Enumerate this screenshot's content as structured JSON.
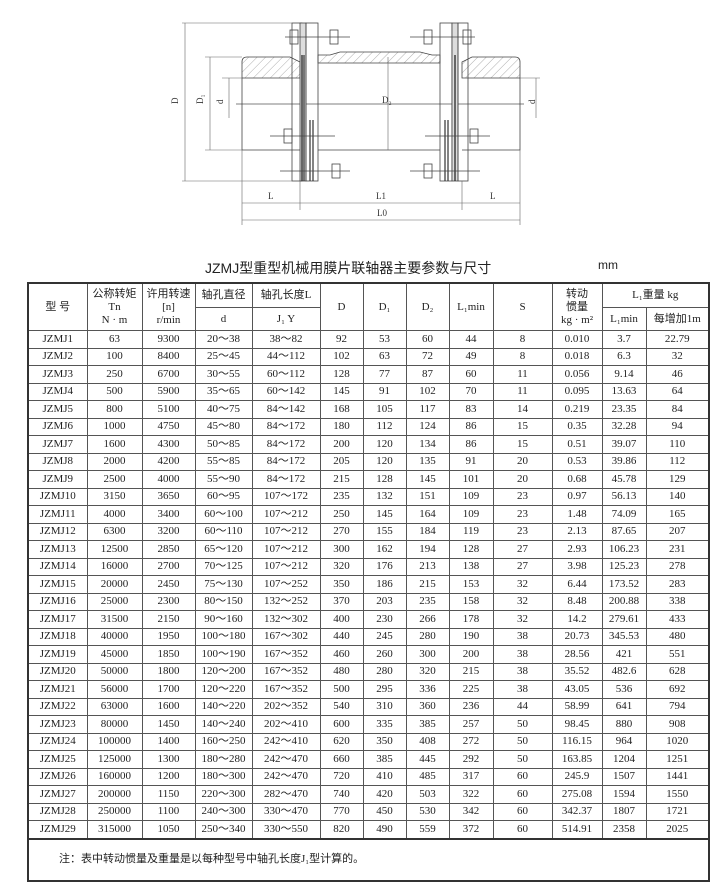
{
  "drawing": {
    "labels": {
      "D": "D",
      "D1": "D₁",
      "D2": "D₂",
      "d_left": "d",
      "d_right": "d",
      "L_left": "L",
      "L1": "L1",
      "L_right": "L",
      "L0": "L0"
    }
  },
  "title": "JZMJ型重型机械用膜片联轴器主要参数与尺寸",
  "unit": "mm",
  "table": {
    "headers": {
      "model": "型 号",
      "torque": "公称转矩",
      "torque_sym": "Tn",
      "torque_unit": "N · m",
      "speed": "许用转速",
      "speed_sym": "[n]",
      "speed_unit": "r/min",
      "bore": "轴孔直径",
      "bore_sym": "d",
      "length": "轴孔长度L",
      "length_sym": "J₁  Y",
      "D": "D",
      "D1": "D₁",
      "D2": "D₂",
      "L1min": "L₁min",
      "S": "S",
      "inertia": "转动",
      "inertia2": "惯量",
      "inertia_unit": "kg · m²",
      "weight": "L₁重量 kg",
      "weight_l1min": "L₁min",
      "weight_per_m": "每增加1m"
    },
    "rows": [
      [
        "JZMJ1",
        "63",
        "9300",
        "20～38",
        "38～82",
        "92",
        "53",
        "60",
        "44",
        "8",
        "0.010",
        "3.7",
        "22.79"
      ],
      [
        "JZMJ2",
        "100",
        "8400",
        "25～45",
        "44～112",
        "102",
        "63",
        "72",
        "49",
        "8",
        "0.018",
        "6.3",
        "32"
      ],
      [
        "JZMJ3",
        "250",
        "6700",
        "30～55",
        "60～112",
        "128",
        "77",
        "87",
        "60",
        "11",
        "0.056",
        "9.14",
        "46"
      ],
      [
        "JZMJ4",
        "500",
        "5900",
        "35～65",
        "60～142",
        "145",
        "91",
        "102",
        "70",
        "11",
        "0.095",
        "13.63",
        "64"
      ],
      [
        "JZMJ5",
        "800",
        "5100",
        "40～75",
        "84～142",
        "168",
        "105",
        "117",
        "83",
        "14",
        "0.219",
        "23.35",
        "84"
      ],
      [
        "JZMJ6",
        "1000",
        "4750",
        "45～80",
        "84～172",
        "180",
        "112",
        "124",
        "86",
        "15",
        "0.35",
        "32.28",
        "94"
      ],
      [
        "JZMJ7",
        "1600",
        "4300",
        "50～85",
        "84～172",
        "200",
        "120",
        "134",
        "86",
        "15",
        "0.51",
        "39.07",
        "110"
      ],
      [
        "JZMJ8",
        "2000",
        "4200",
        "55～85",
        "84～172",
        "205",
        "120",
        "135",
        "91",
        "20",
        "0.53",
        "39.86",
        "112"
      ],
      [
        "JZMJ9",
        "2500",
        "4000",
        "55～90",
        "84～172",
        "215",
        "128",
        "145",
        "101",
        "20",
        "0.68",
        "45.78",
        "129"
      ],
      [
        "JZMJ10",
        "3150",
        "3650",
        "60～95",
        "107～172",
        "235",
        "132",
        "151",
        "109",
        "23",
        "0.97",
        "56.13",
        "140"
      ],
      [
        "JZMJ11",
        "4000",
        "3400",
        "60～100",
        "107～212",
        "250",
        "145",
        "164",
        "109",
        "23",
        "1.48",
        "74.09",
        "165"
      ],
      [
        "JZMJ12",
        "6300",
        "3200",
        "60～110",
        "107～212",
        "270",
        "155",
        "184",
        "119",
        "23",
        "2.13",
        "87.65",
        "207"
      ],
      [
        "JZMJ13",
        "12500",
        "2850",
        "65～120",
        "107～212",
        "300",
        "162",
        "194",
        "128",
        "27",
        "2.93",
        "106.23",
        "231"
      ],
      [
        "JZMJ14",
        "16000",
        "2700",
        "70～125",
        "107～212",
        "320",
        "176",
        "213",
        "138",
        "27",
        "3.98",
        "125.23",
        "278"
      ],
      [
        "JZMJ15",
        "20000",
        "2450",
        "75～130",
        "107～252",
        "350",
        "186",
        "215",
        "153",
        "32",
        "6.44",
        "173.52",
        "283"
      ],
      [
        "JZMJ16",
        "25000",
        "2300",
        "80～150",
        "132～252",
        "370",
        "203",
        "235",
        "158",
        "32",
        "8.48",
        "200.88",
        "338"
      ],
      [
        "JZMJ17",
        "31500",
        "2150",
        "90～160",
        "132～302",
        "400",
        "230",
        "266",
        "178",
        "32",
        "14.2",
        "279.61",
        "433"
      ],
      [
        "JZMJ18",
        "40000",
        "1950",
        "100～180",
        "167～302",
        "440",
        "245",
        "280",
        "190",
        "38",
        "20.73",
        "345.53",
        "480"
      ],
      [
        "JZMJ19",
        "45000",
        "1850",
        "100～190",
        "167～352",
        "460",
        "260",
        "300",
        "200",
        "38",
        "28.56",
        "421",
        "551"
      ],
      [
        "JZMJ20",
        "50000",
        "1800",
        "120～200",
        "167～352",
        "480",
        "280",
        "320",
        "215",
        "38",
        "35.52",
        "482.6",
        "628"
      ],
      [
        "JZMJ21",
        "56000",
        "1700",
        "120～220",
        "167～352",
        "500",
        "295",
        "336",
        "225",
        "38",
        "43.05",
        "536",
        "692"
      ],
      [
        "JZMJ22",
        "63000",
        "1600",
        "140～220",
        "202～352",
        "540",
        "310",
        "360",
        "236",
        "44",
        "58.99",
        "641",
        "794"
      ],
      [
        "JZMJ23",
        "80000",
        "1450",
        "140～240",
        "202～410",
        "600",
        "335",
        "385",
        "257",
        "50",
        "98.45",
        "880",
        "908"
      ],
      [
        "JZMJ24",
        "100000",
        "1400",
        "160～250",
        "242～410",
        "620",
        "350",
        "408",
        "272",
        "50",
        "116.15",
        "964",
        "1020"
      ],
      [
        "JZMJ25",
        "125000",
        "1300",
        "180～280",
        "242～470",
        "660",
        "385",
        "445",
        "292",
        "50",
        "163.85",
        "1204",
        "1251"
      ],
      [
        "JZMJ26",
        "160000",
        "1200",
        "180～300",
        "242～470",
        "720",
        "410",
        "485",
        "317",
        "60",
        "245.9",
        "1507",
        "1441"
      ],
      [
        "JZMJ27",
        "200000",
        "1150",
        "220～300",
        "282～470",
        "740",
        "420",
        "503",
        "322",
        "60",
        "275.08",
        "1594",
        "1550"
      ],
      [
        "JZMJ28",
        "250000",
        "1100",
        "240～300",
        "330～470",
        "770",
        "450",
        "530",
        "342",
        "60",
        "342.37",
        "1807",
        "1721"
      ],
      [
        "JZMJ29",
        "315000",
        "1050",
        "250～340",
        "330～550",
        "820",
        "490",
        "559",
        "372",
        "60",
        "514.91",
        "2358",
        "2025"
      ]
    ],
    "note": "注：表中转动惯量及重量是以每种型号中轴孔长度J₁型计算的。"
  }
}
